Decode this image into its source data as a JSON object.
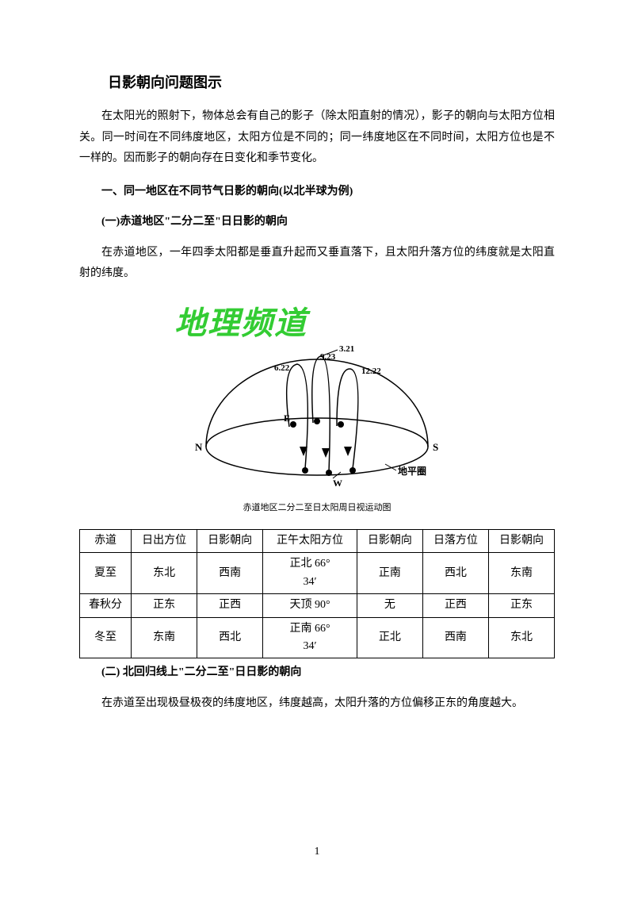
{
  "title": "日影朝向问题图示",
  "intro": "在太阳光的照射下，物体总会有自己的影子（除太阳直射的情况），影子的朝向与太阳方位相关。同一时间在不同纬度地区，太阳方位是不同的；同一纬度地区在不同时间，太阳方位也是不一样的。因而影子的朝向存在日变化和季节变化。",
  "section1": "一、同一地区在不同节气日影的朝向(以北半球为例)",
  "section1_1": "(一)赤道地区\"二分二至\"日日影的朝向",
  "para1_1": "在赤道地区，一年四季太阳都是垂直升起而又垂直落下，且太阳升落方位的纬度就是太阳直射的纬度。",
  "watermark": "地理频道",
  "diagram": {
    "labels": {
      "N": "N",
      "S": "S",
      "E": "E",
      "W": "W",
      "horizon": "地平圈",
      "d1": "3.21",
      "d2": "9.23",
      "d3": "6.22",
      "d4": "12.22"
    },
    "caption": "赤道地区二分二至日太阳周日视运动图"
  },
  "table": {
    "columns": [
      "赤道",
      "日出方位",
      "日影朝向",
      "正午太阳方位",
      "日影朝向",
      "日落方位",
      "日影朝向"
    ],
    "rows": [
      [
        "夏至",
        "东北",
        "西南",
        "正北 66°34′",
        "正南",
        "西北",
        "东南"
      ],
      [
        "春秋分",
        "正东",
        "正西",
        "天顶 90°",
        "无",
        "正西",
        "正东"
      ],
      [
        "冬至",
        "东南",
        "西北",
        "正南 66°34′",
        "正北",
        "西南",
        "东北"
      ]
    ]
  },
  "section1_2": "(二) 北回归线上\"二分二至\"日日影的朝向",
  "para1_2": "在赤道至出现极昼极夜的纬度地区，纬度越高，太阳升落的方位偏移正东的角度越大。",
  "pageNumber": "1",
  "colors": {
    "text": "#000000",
    "watermark": "#33cc33",
    "background": "#ffffff",
    "tableBorder": "#000000",
    "diagramStroke": "#000000"
  }
}
